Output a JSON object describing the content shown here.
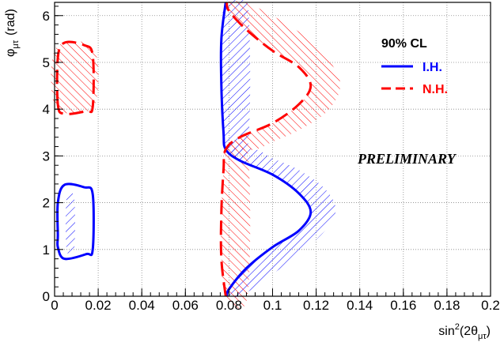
{
  "chart_data": {
    "type": "contour",
    "x_axis": {
      "label_main": "sin",
      "label_sup": "2",
      "label_open": "(2θ",
      "label_sub": "μτ",
      "label_close": ")",
      "range": [
        0,
        0.2
      ],
      "tick_labels": [
        "0",
        "0.02",
        "0.04",
        "0.06",
        "0.08",
        "0.1",
        "0.12",
        "0.14",
        "0.16",
        "0.18",
        "0.2"
      ]
    },
    "y_axis": {
      "label_main": "φ",
      "label_sub": "μτ",
      "label_unit": "(rad)",
      "range": [
        0,
        6.283
      ],
      "tick_labels": [
        "0",
        "1",
        "2",
        "3",
        "4",
        "5",
        "6"
      ]
    },
    "grid": true,
    "legend": {
      "title": "90% CL",
      "position": "top-right",
      "entries": [
        {
          "label": "I.H.",
          "color": "#0000ff",
          "style": "solid"
        },
        {
          "label": "N.H.",
          "color": "#ff0000",
          "style": "dashed"
        }
      ]
    },
    "annotation": "PRELIMINARY",
    "series": [
      {
        "name": "I.H.",
        "color": "#0000ff",
        "style": "solid",
        "hatch_side": "inside",
        "curves": [
          [
            [
              0.0785,
              6.283
            ],
            [
              0.0765,
              5.5
            ],
            [
              0.0765,
              4.5
            ],
            [
              0.0775,
              3.5
            ],
            [
              0.0785,
              3.14
            ],
            [
              0.085,
              2.9
            ],
            [
              0.1,
              2.6
            ],
            [
              0.112,
              2.2
            ],
            [
              0.1175,
              1.8
            ],
            [
              0.112,
              1.4
            ],
            [
              0.1,
              1.05
            ],
            [
              0.088,
              0.6
            ],
            [
              0.08,
              0.15
            ],
            [
              0.079,
              0
            ]
          ],
          [
            [
              0.0015,
              1.3
            ],
            [
              0.0015,
              2.0
            ],
            [
              0.0045,
              2.38
            ],
            [
              0.0135,
              2.33
            ],
            [
              0.0175,
              2.18
            ],
            [
              0.0175,
              1.0
            ],
            [
              0.0145,
              0.9
            ],
            [
              0.0045,
              0.8
            ],
            [
              0.0015,
              1.05
            ],
            [
              0.0015,
              1.3
            ]
          ]
        ],
        "hatch_regions": [
          [
            [
              0.0785,
              6.283
            ],
            [
              0.0885,
              6.283
            ],
            [
              0.0885,
              3.14
            ],
            [
              0.0785,
              3.14
            ],
            [
              0.0775,
              3.5
            ],
            [
              0.0765,
              4.5
            ],
            [
              0.0765,
              5.5
            ]
          ],
          [
            [
              0.0785,
              3.14
            ],
            [
              0.085,
              2.9
            ],
            [
              0.1,
              2.6
            ],
            [
              0.112,
              2.2
            ],
            [
              0.1175,
              1.8
            ],
            [
              0.112,
              1.4
            ],
            [
              0.1,
              1.05
            ],
            [
              0.088,
              0.6
            ],
            [
              0.08,
              0.15
            ],
            [
              0.079,
              0
            ],
            [
              0.085,
              0
            ],
            [
              0.095,
              0.3
            ],
            [
              0.112,
              0.9
            ],
            [
              0.124,
              1.4
            ],
            [
              0.129,
              1.85
            ],
            [
              0.124,
              2.3
            ],
            [
              0.112,
              2.7
            ],
            [
              0.1,
              2.95
            ],
            [
              0.092,
              3.14
            ]
          ],
          [
            [
              0.0055,
              1.0
            ],
            [
              0.009,
              1.0
            ],
            [
              0.009,
              2.1
            ],
            [
              0.0055,
              2.1
            ]
          ]
        ]
      },
      {
        "name": "N.H.",
        "color": "#ff0000",
        "style": "dashed",
        "hatch_side": "inside",
        "curves": [
          [
            [
              0.0785,
              0
            ],
            [
              0.0765,
              0.8
            ],
            [
              0.0765,
              1.8
            ],
            [
              0.0775,
              2.7
            ],
            [
              0.0785,
              3.14
            ],
            [
              0.085,
              3.4
            ],
            [
              0.1,
              3.7
            ],
            [
              0.112,
              4.1
            ],
            [
              0.1175,
              4.5
            ],
            [
              0.112,
              4.9
            ],
            [
              0.1,
              5.25
            ],
            [
              0.088,
              5.7
            ],
            [
              0.08,
              6.1
            ],
            [
              0.079,
              6.283
            ]
          ],
          [
            [
              0.0015,
              4.1
            ],
            [
              0.0015,
              5.1
            ],
            [
              0.0045,
              5.42
            ],
            [
              0.0135,
              5.37
            ],
            [
              0.0175,
              5.15
            ],
            [
              0.0175,
              4.05
            ],
            [
              0.0145,
              3.96
            ],
            [
              0.0045,
              3.9
            ],
            [
              0.0015,
              4.1
            ]
          ]
        ],
        "hatch_regions": [
          [
            [
              0.0785,
              0
            ],
            [
              0.0885,
              0
            ],
            [
              0.0885,
              3.14
            ],
            [
              0.0785,
              3.14
            ],
            [
              0.0775,
              2.7
            ],
            [
              0.0765,
              1.8
            ],
            [
              0.0765,
              0.8
            ]
          ],
          [
            [
              0.0785,
              3.14
            ],
            [
              0.085,
              3.4
            ],
            [
              0.1,
              3.7
            ],
            [
              0.112,
              4.1
            ],
            [
              0.1175,
              4.5
            ],
            [
              0.112,
              4.9
            ],
            [
              0.1,
              5.25
            ],
            [
              0.088,
              5.7
            ],
            [
              0.08,
              6.1
            ],
            [
              0.079,
              6.283
            ],
            [
              0.087,
              6.283
            ],
            [
              0.1,
              6.0
            ],
            [
              0.118,
              5.45
            ],
            [
              0.128,
              4.9
            ],
            [
              0.131,
              4.45
            ],
            [
              0.125,
              3.95
            ],
            [
              0.112,
              3.55
            ],
            [
              0.1,
              3.3
            ],
            [
              0.092,
              3.14
            ]
          ],
          [
            [
              0.0005,
              4.05
            ],
            [
              0.0005,
              5.3
            ],
            [
              0.018,
              5.3
            ],
            [
              0.018,
              4.05
            ]
          ]
        ]
      }
    ]
  }
}
